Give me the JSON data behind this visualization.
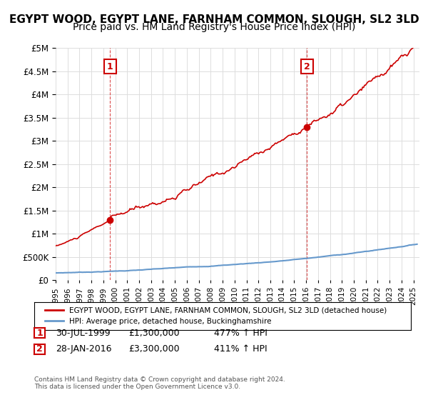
{
  "title": "EGYPT WOOD, EGYPT LANE, FARNHAM COMMON, SLOUGH, SL2 3LD",
  "subtitle": "Price paid vs. HM Land Registry's House Price Index (HPI)",
  "title_fontsize": 11,
  "subtitle_fontsize": 10,
  "ylabel_ticks": [
    "£0",
    "£500K",
    "£1M",
    "£1.5M",
    "£2M",
    "£2.5M",
    "£3M",
    "£3.5M",
    "£4M",
    "£4.5M",
    "£5M"
  ],
  "ylim": [
    0,
    5000000
  ],
  "ytick_vals": [
    0,
    500000,
    1000000,
    1500000,
    2000000,
    2500000,
    3000000,
    3500000,
    4000000,
    4500000,
    5000000
  ],
  "xlim_start": 1995.0,
  "xlim_end": 2025.5,
  "sale1_date": 1999.57,
  "sale1_price": 1300000,
  "sale2_date": 2016.08,
  "sale2_price": 3300000,
  "red_color": "#cc0000",
  "blue_color": "#6699cc",
  "dashed_color": "#cc0000",
  "annotation_box_color": "#cc0000",
  "grid_color": "#dddddd",
  "legend_line1": "EGYPT WOOD, EGYPT LANE, FARNHAM COMMON, SLOUGH, SL2 3LD (detached house)",
  "legend_line2": "HPI: Average price, detached house, Buckinghamshire",
  "table_row1_num": "1",
  "table_row1_date": "30-JUL-1999",
  "table_row1_price": "£1,300,000",
  "table_row1_hpi": "477% ↑ HPI",
  "table_row2_num": "2",
  "table_row2_date": "28-JAN-2016",
  "table_row2_price": "£3,300,000",
  "table_row2_hpi": "411% ↑ HPI",
  "footer": "Contains HM Land Registry data © Crown copyright and database right 2024.\nThis data is licensed under the Open Government Licence v3.0.",
  "background_color": "#ffffff"
}
